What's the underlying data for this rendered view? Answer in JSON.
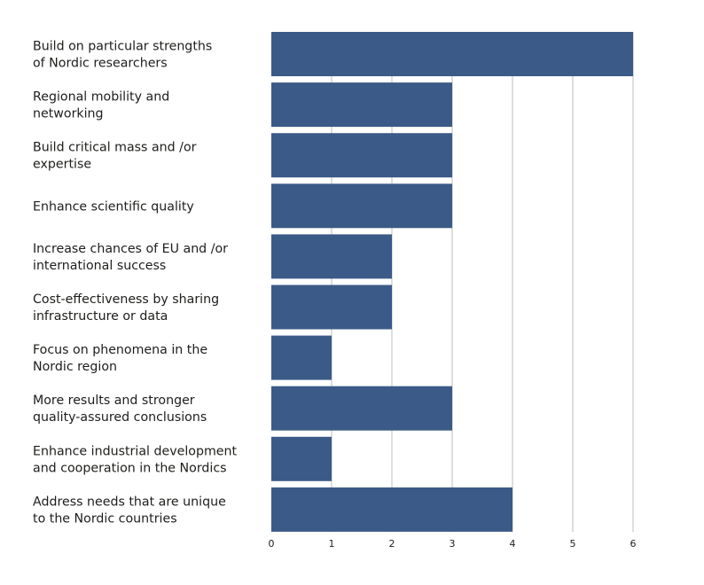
{
  "chart_data": {
    "type": "bar",
    "orientation": "horizontal",
    "categories": [
      "Build on particular strengths\nof Nordic researchers",
      "Regional mobility and\nnetworking",
      "Build critical mass and /or\nexpertise",
      "Enhance scientific quality",
      "Increase chances of EU and /or\ninternational success",
      "Cost-effectiveness by sharing\ninfrastructure or data",
      "Focus on phenomena in the\nNordic region",
      "More results and stronger\nquality-assured conclusions",
      "Enhance industrial development\nand cooperation in the Nordics",
      "Address needs that are unique\nto the Nordic countries"
    ],
    "values": [
      6,
      3,
      3,
      3,
      2,
      2,
      1,
      3,
      1,
      4
    ],
    "title": "",
    "xlabel": "",
    "ylabel": "",
    "xlim": [
      0,
      6
    ],
    "xticks": [
      "0",
      "1",
      "2",
      "3",
      "4",
      "5",
      "6"
    ],
    "grid": "vertical",
    "legend": "none",
    "bar_color": "#3b5a87",
    "grid_color": "#c8c8c8"
  }
}
